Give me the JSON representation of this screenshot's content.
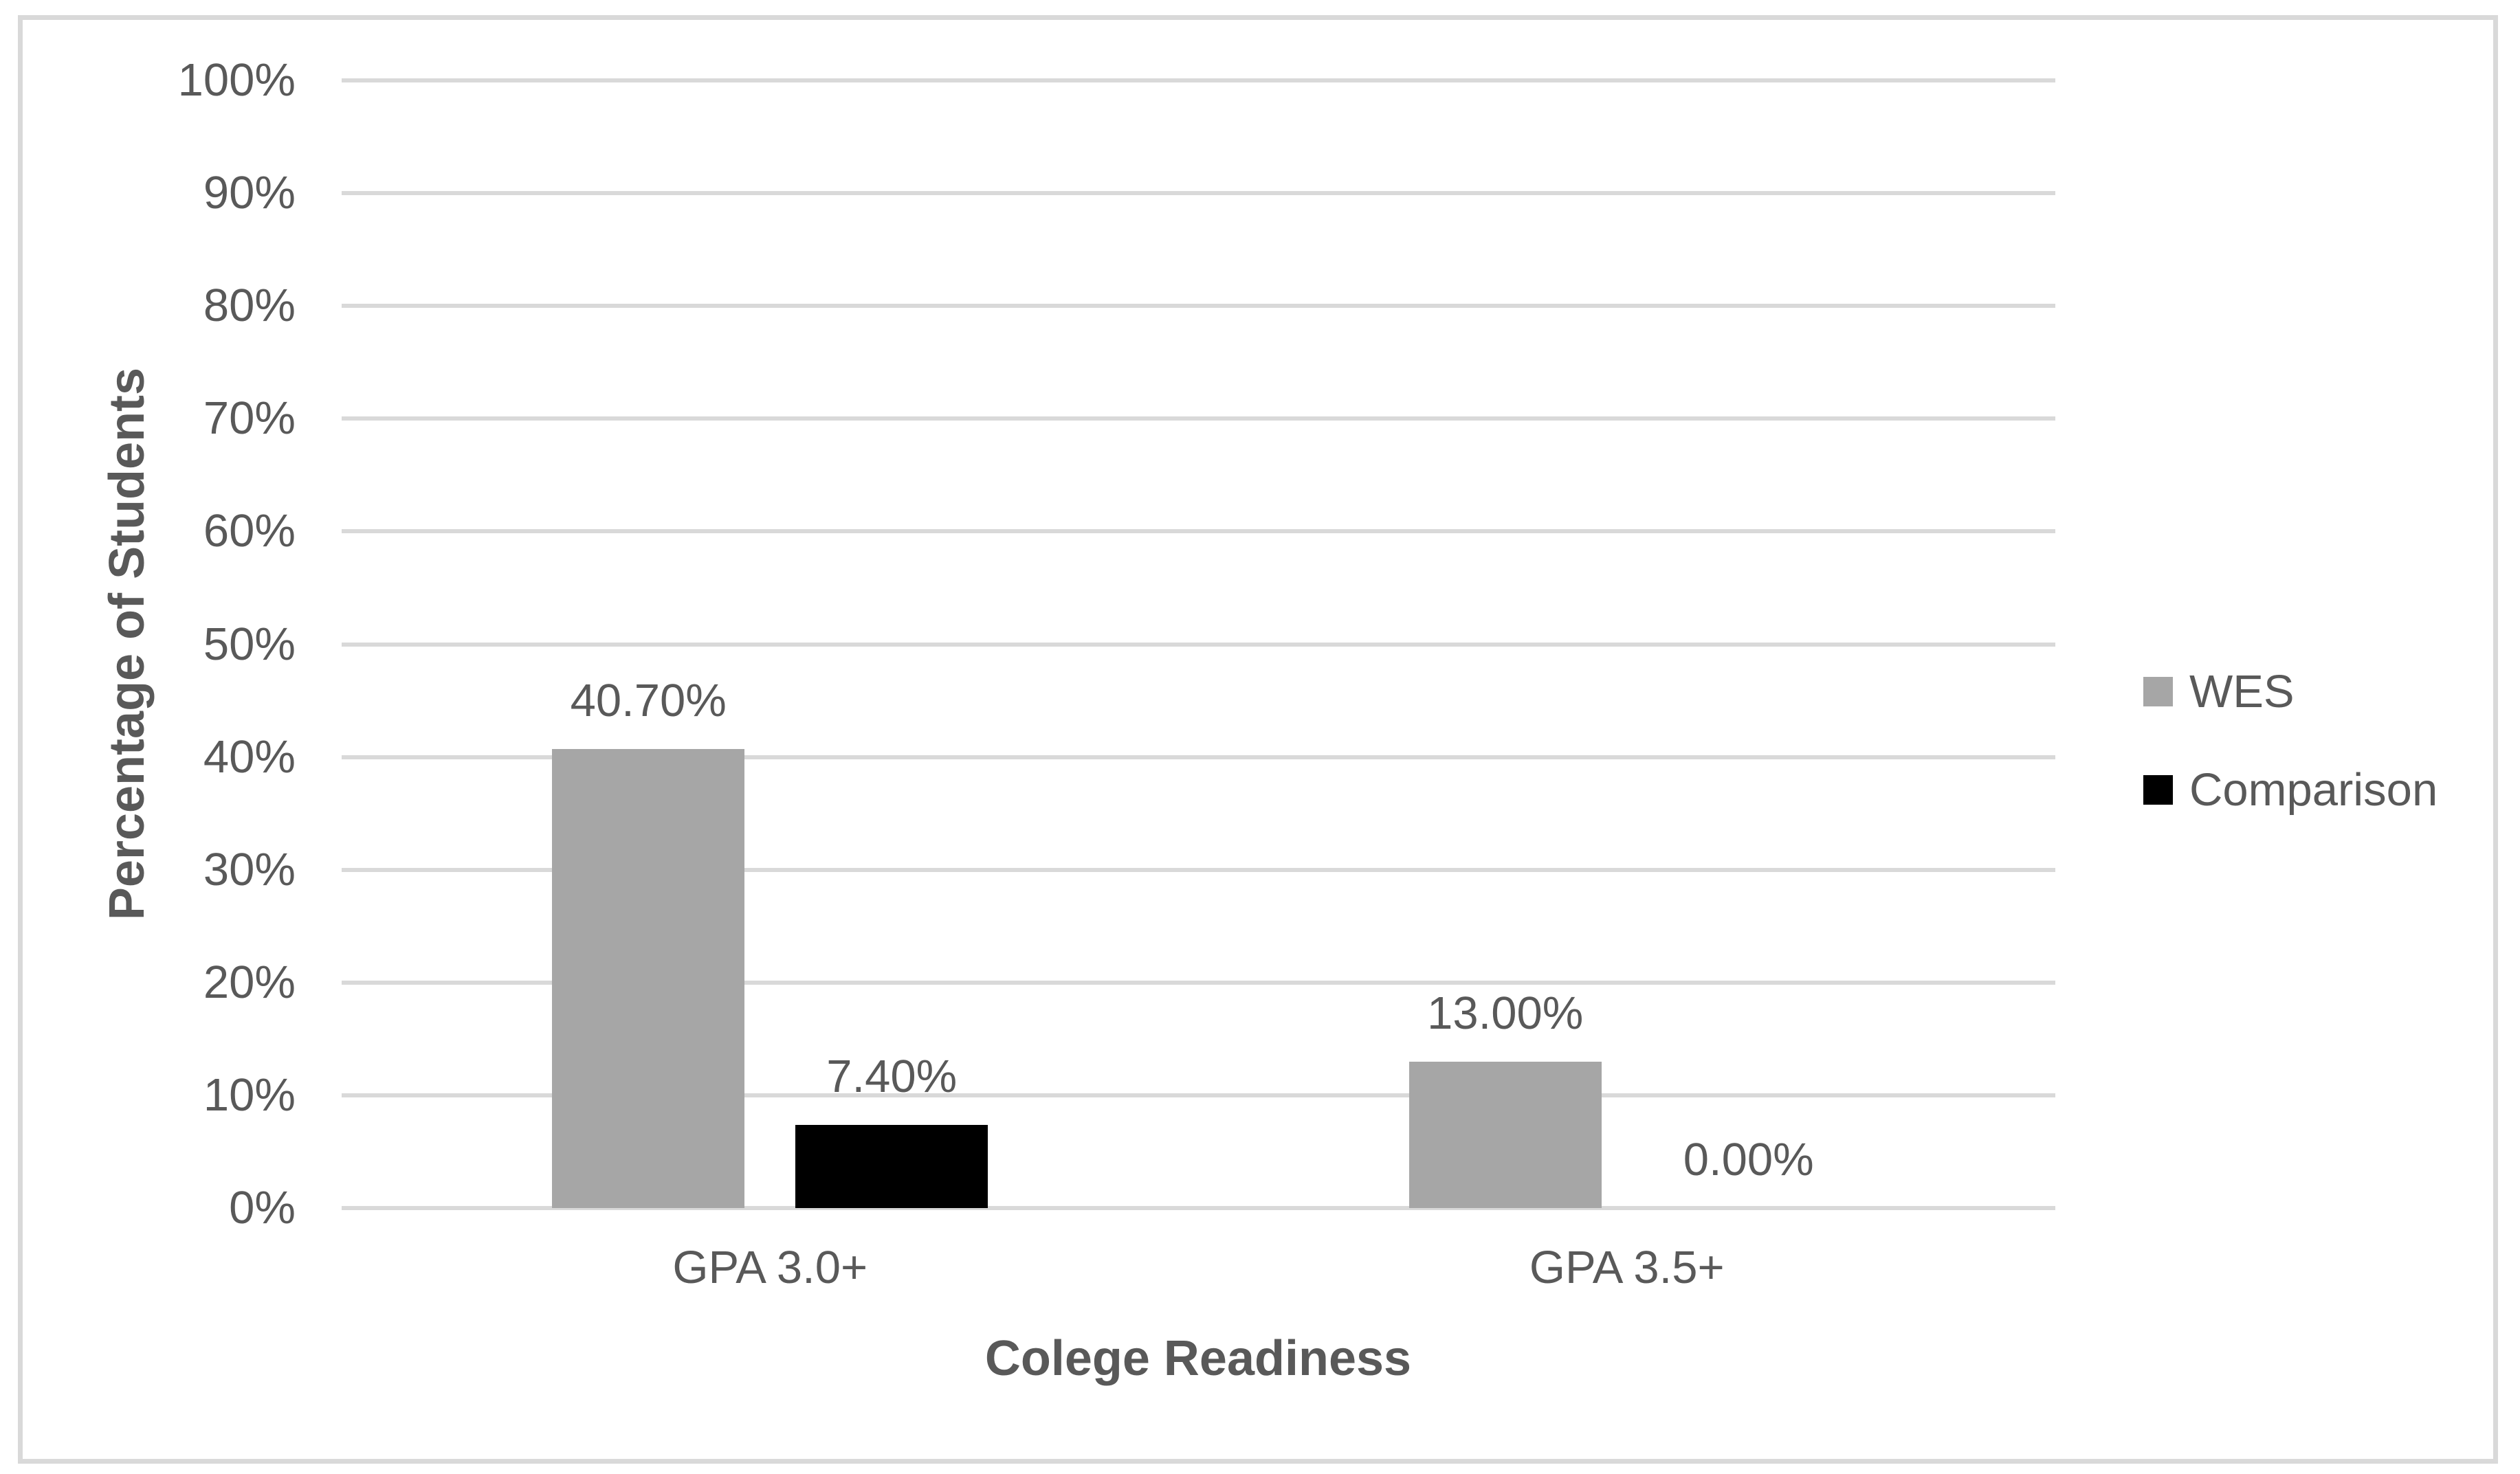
{
  "chart_data": {
    "type": "bar",
    "title": "",
    "categories": [
      "GPA 3.0+",
      "GPA 3.5+"
    ],
    "series": [
      {
        "name": "WES",
        "color": "#A6A6A6",
        "values": [
          40.7,
          13.0
        ],
        "labels": [
          "40.70%",
          "13.00%"
        ]
      },
      {
        "name": "Comparison",
        "color": "#000000",
        "values": [
          7.4,
          0.0
        ],
        "labels": [
          "7.40%",
          "0.00%"
        ]
      }
    ],
    "xlabel": "Colege Readiness",
    "ylabel": "Percentage of Students",
    "ylim": [
      0,
      100
    ],
    "ytick_step": 10,
    "yticks": [
      "0%",
      "10%",
      "20%",
      "30%",
      "40%",
      "50%",
      "60%",
      "70%",
      "80%",
      "90%",
      "100%"
    ],
    "grid": true,
    "legend_position": "right",
    "colors": {
      "gridline": "#D9D9D9",
      "frame_border": "#D9D9D9",
      "text": "#595959"
    }
  }
}
